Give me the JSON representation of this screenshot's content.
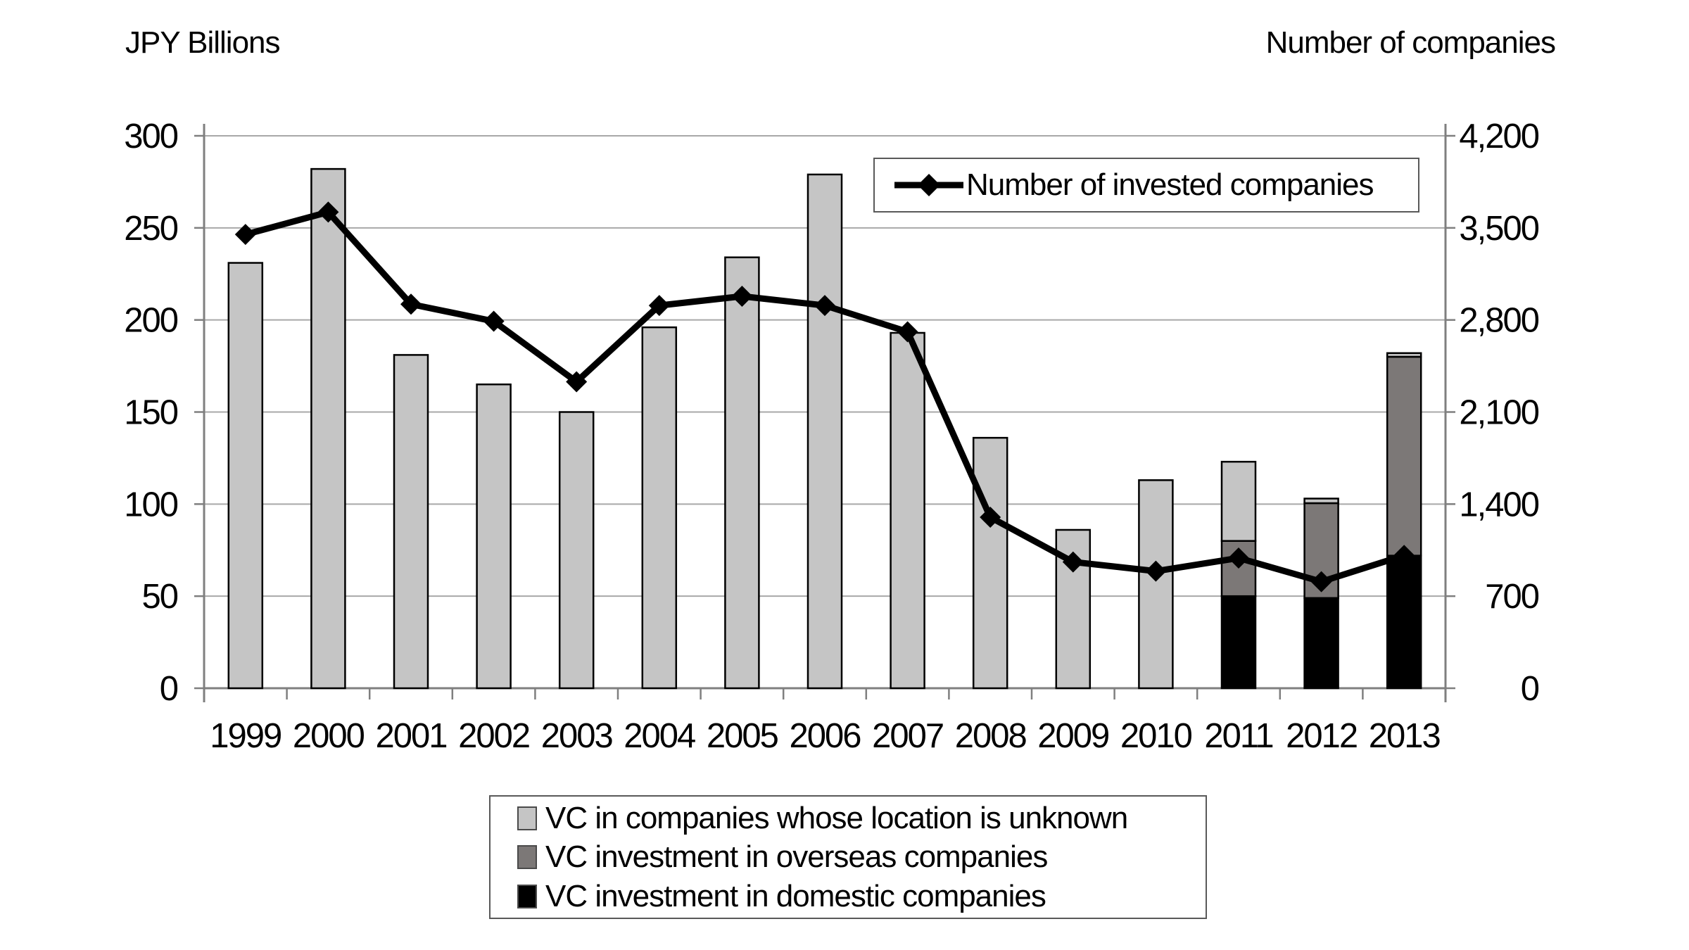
{
  "titles": {
    "left_axis": "JPY Billions",
    "right_axis": "Number of companies"
  },
  "top_legend": {
    "label": "Number of invested companies"
  },
  "bottom_legend": {
    "items": [
      {
        "key": "unknown",
        "label": "VC in companies whose location is unknown",
        "color": "#c5c5c5"
      },
      {
        "key": "overseas",
        "label": "VC investment in overseas companies",
        "color": "#7c7877"
      },
      {
        "key": "domestic",
        "label": "VC investment in domestic companies",
        "color": "#000000"
      }
    ]
  },
  "colors": {
    "bar_unknown": "#c5c5c5",
    "bar_overseas": "#7c7877",
    "bar_domestic": "#000000",
    "bar_border": "#000000",
    "line": "#000000",
    "gridline": "#a8a8a8",
    "axis": "#7f7f7f",
    "text": "#000000"
  },
  "chart_data": {
    "type": "bar",
    "subtype": "stacked-bars-with-line",
    "categories": [
      "1999",
      "2000",
      "2001",
      "2002",
      "2003",
      "2004",
      "2005",
      "2006",
      "2007",
      "2008",
      "2009",
      "2010",
      "2011",
      "2012",
      "2013"
    ],
    "series": [
      {
        "name": "VC investment in domestic companies",
        "axis": "left",
        "values": [
          0,
          0,
          0,
          0,
          0,
          0,
          0,
          0,
          0,
          0,
          0,
          0,
          50,
          49,
          72
        ]
      },
      {
        "name": "VC investment in overseas companies",
        "axis": "left",
        "values": [
          0,
          0,
          0,
          0,
          0,
          0,
          0,
          0,
          0,
          0,
          0,
          0,
          30,
          51.5,
          108
        ]
      },
      {
        "name": "VC in companies whose location is unknown",
        "axis": "left",
        "values": [
          231,
          282,
          181,
          165,
          150,
          196,
          234,
          279,
          193,
          136,
          86,
          113,
          43,
          2.5,
          2
        ]
      }
    ],
    "bar_totals": [
      231,
      282,
      181,
      165,
      150,
      196,
      234,
      279,
      193,
      136,
      86,
      113,
      123,
      103,
      182
    ],
    "line_series": {
      "name": "Number of invested companies",
      "axis": "right",
      "values": [
        3450,
        3620,
        2920,
        2790,
        2330,
        2910,
        2980,
        2910,
        2710,
        1300,
        960,
        890,
        990,
        810,
        1010
      ]
    },
    "left_axis": {
      "title": "JPY Billions",
      "min": 0,
      "max": 300,
      "step": 50,
      "ticks": [
        "0",
        "50",
        "100",
        "150",
        "200",
        "250",
        "300"
      ]
    },
    "right_axis": {
      "title": "Number of companies",
      "min": 0,
      "max": 4200,
      "step": 700,
      "ticks": [
        "0",
        "700",
        "1,400",
        "2,100",
        "2,800",
        "3,500",
        "4,200"
      ]
    },
    "grid": true,
    "legend_positions": {
      "line_legend": "top-right-inside",
      "bar_legend": "below-chart"
    }
  }
}
